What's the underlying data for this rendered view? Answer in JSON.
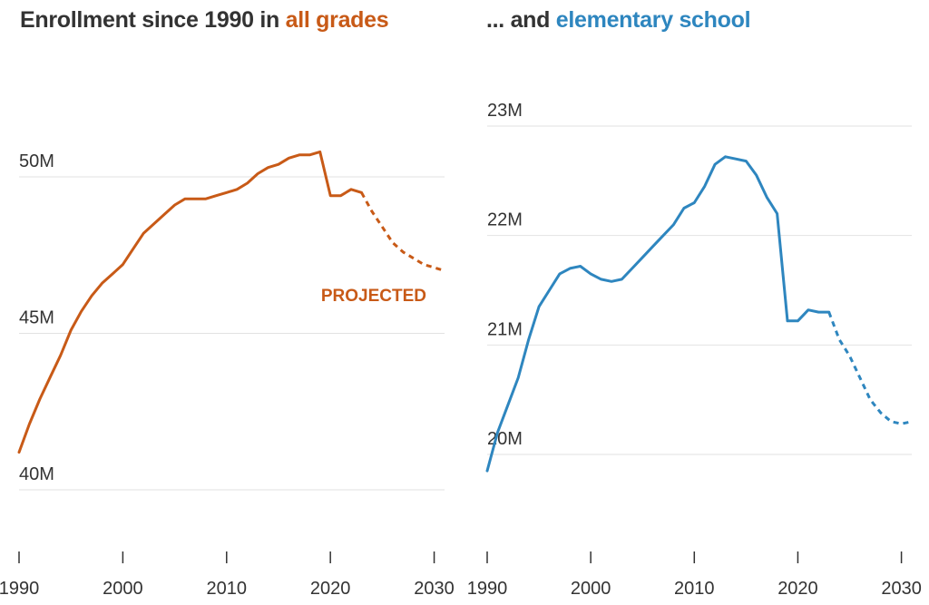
{
  "titles": {
    "left_prefix": "Enrollment since 1990 in ",
    "left_highlight": "all grades",
    "right_prefix": "... and ",
    "right_highlight": "elementary school"
  },
  "colors": {
    "all_grades": "#c85a17",
    "elementary": "#2e86bf"
  },
  "chart_data": [
    {
      "type": "line",
      "title": "Enrollment since 1990 in all grades",
      "xlim": [
        1990,
        2031
      ],
      "ylim": [
        37.3,
        50
      ],
      "y_ticks": [
        {
          "v": 40,
          "label": "40M"
        },
        {
          "v": 45,
          "label": "45M"
        },
        {
          "v": 50,
          "label": "50M"
        }
      ],
      "x_ticks": [
        {
          "v": 1990,
          "label": "1990"
        },
        {
          "v": 2000,
          "label": "2000"
        },
        {
          "v": 2010,
          "label": "2010"
        },
        {
          "v": 2020,
          "label": "2020"
        },
        {
          "v": 2030,
          "label": "2030"
        }
      ],
      "annotation": "PROJECTED",
      "series": [
        {
          "style": "solid",
          "x": [
            1990,
            1991,
            1992,
            1993,
            1994,
            1995,
            1996,
            1997,
            1998,
            1999,
            2000,
            2001,
            2002,
            2003,
            2004,
            2005,
            2006,
            2007,
            2008,
            2009,
            2010,
            2011,
            2012,
            2013,
            2014,
            2015,
            2016,
            2017,
            2018,
            2019,
            2020,
            2021,
            2022,
            2023
          ],
          "y": [
            41.2,
            42.1,
            42.9,
            43.6,
            44.3,
            45.1,
            45.7,
            46.2,
            46.6,
            46.9,
            47.2,
            47.7,
            48.2,
            48.5,
            48.8,
            49.1,
            49.3,
            49.3,
            49.3,
            49.4,
            49.5,
            49.6,
            49.8,
            50.1,
            50.3,
            50.4,
            50.6,
            50.7,
            50.7,
            50.8,
            49.4,
            49.4,
            49.6,
            49.5
          ]
        },
        {
          "style": "dashed",
          "x": [
            2023,
            2024,
            2025,
            2026,
            2027,
            2028,
            2029,
            2030,
            2031
          ],
          "y": [
            49.5,
            48.9,
            48.4,
            47.9,
            47.6,
            47.4,
            47.2,
            47.1,
            47.0
          ]
        }
      ]
    },
    {
      "type": "line",
      "title": "... and elementary school",
      "xlim": [
        1990,
        2031
      ],
      "ylim": [
        19.7,
        23.3
      ],
      "y_ticks": [
        {
          "v": 20,
          "label": "20M"
        },
        {
          "v": 21,
          "label": "21M"
        },
        {
          "v": 22,
          "label": "22M"
        },
        {
          "v": 23,
          "label": "23M"
        }
      ],
      "x_ticks": [
        {
          "v": 1990,
          "label": "1990"
        },
        {
          "v": 2000,
          "label": "2000"
        },
        {
          "v": 2010,
          "label": "2010"
        },
        {
          "v": 2020,
          "label": "2020"
        },
        {
          "v": 2030,
          "label": "2030"
        }
      ],
      "series": [
        {
          "style": "solid",
          "x": [
            1990,
            1991,
            1992,
            1993,
            1994,
            1995,
            1996,
            1997,
            1998,
            1999,
            2000,
            2001,
            2002,
            2003,
            2004,
            2005,
            2006,
            2007,
            2008,
            2009,
            2010,
            2011,
            2012,
            2013,
            2014,
            2015,
            2016,
            2017,
            2018,
            2019,
            2020,
            2021,
            2022,
            2023
          ],
          "y": [
            19.85,
            20.2,
            20.45,
            20.7,
            21.05,
            21.35,
            21.5,
            21.65,
            21.7,
            21.72,
            21.65,
            21.6,
            21.58,
            21.6,
            21.7,
            21.8,
            21.9,
            22.0,
            22.1,
            22.25,
            22.3,
            22.45,
            22.65,
            22.72,
            22.7,
            22.68,
            22.55,
            22.35,
            22.2,
            21.22,
            21.22,
            21.32,
            21.3,
            21.3
          ]
        },
        {
          "style": "dashed",
          "x": [
            2023,
            2024,
            2025,
            2026,
            2027,
            2028,
            2029,
            2030,
            2031
          ],
          "y": [
            21.3,
            21.05,
            20.9,
            20.7,
            20.5,
            20.38,
            20.3,
            20.28,
            20.3
          ]
        }
      ]
    }
  ]
}
